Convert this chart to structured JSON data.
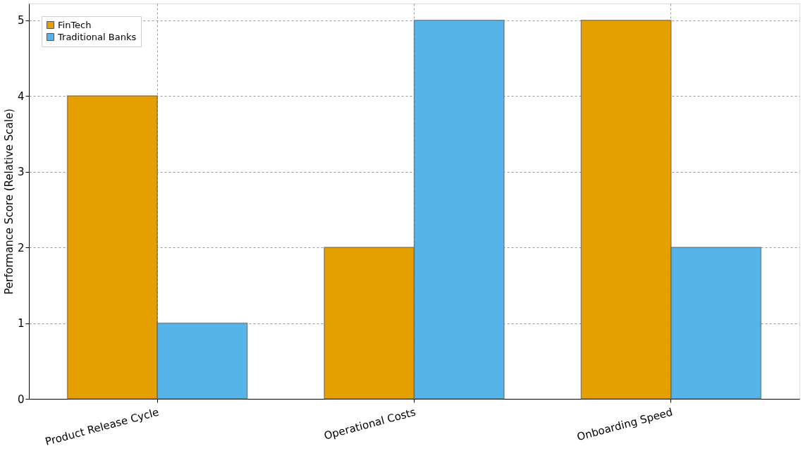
{
  "chart_data": {
    "type": "bar",
    "ylabel": "Performance Score (Relative Scale)",
    "categories": [
      "Product Release Cycle",
      "Operational Costs",
      "Onboarding Speed"
    ],
    "series": [
      {
        "name": "FinTech",
        "color": "#e69f00",
        "values": [
          4,
          2,
          5
        ]
      },
      {
        "name": "Traditional Banks",
        "color": "#56b4e9",
        "values": [
          1,
          5,
          2
        ]
      }
    ],
    "ylim": [
      0,
      5.22
    ],
    "yticks": [
      0,
      1,
      2,
      3,
      4,
      5
    ],
    "grid": true,
    "legend": "top left"
  }
}
